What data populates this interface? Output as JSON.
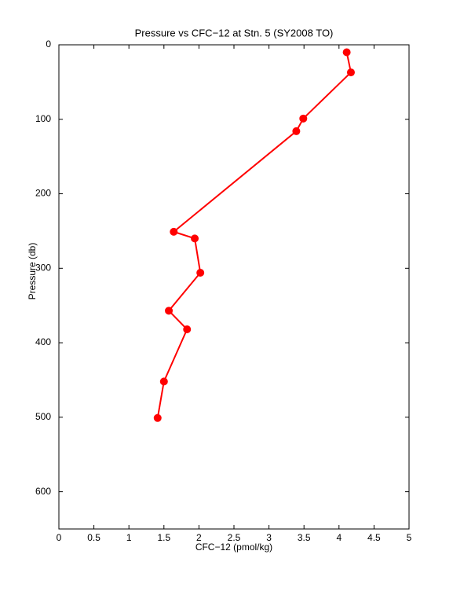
{
  "chart_data": {
    "type": "line",
    "title": "Pressure vs CFC−12 at Stn. 5 (SY2008 TO)",
    "xlabel": "CFC−12 (pmol/kg)",
    "ylabel": "Pressure (db)",
    "x": [
      4.11,
      4.17,
      3.49,
      3.39,
      1.64,
      1.94,
      2.02,
      1.57,
      1.83,
      1.5,
      1.41
    ],
    "values": [
      10,
      37,
      99,
      116,
      251,
      260,
      306,
      357,
      382,
      452,
      501
    ],
    "color": "#ff0000",
    "marker": "circle",
    "xlim": [
      0,
      5
    ],
    "xticks": [
      0,
      0.5,
      1,
      1.5,
      2,
      2.5,
      3,
      3.5,
      4,
      4.5,
      5
    ],
    "ylim": [
      0,
      650
    ],
    "yticks": [
      0,
      100,
      200,
      300,
      400,
      500,
      600
    ],
    "y_reversed": true,
    "grid": false
  }
}
